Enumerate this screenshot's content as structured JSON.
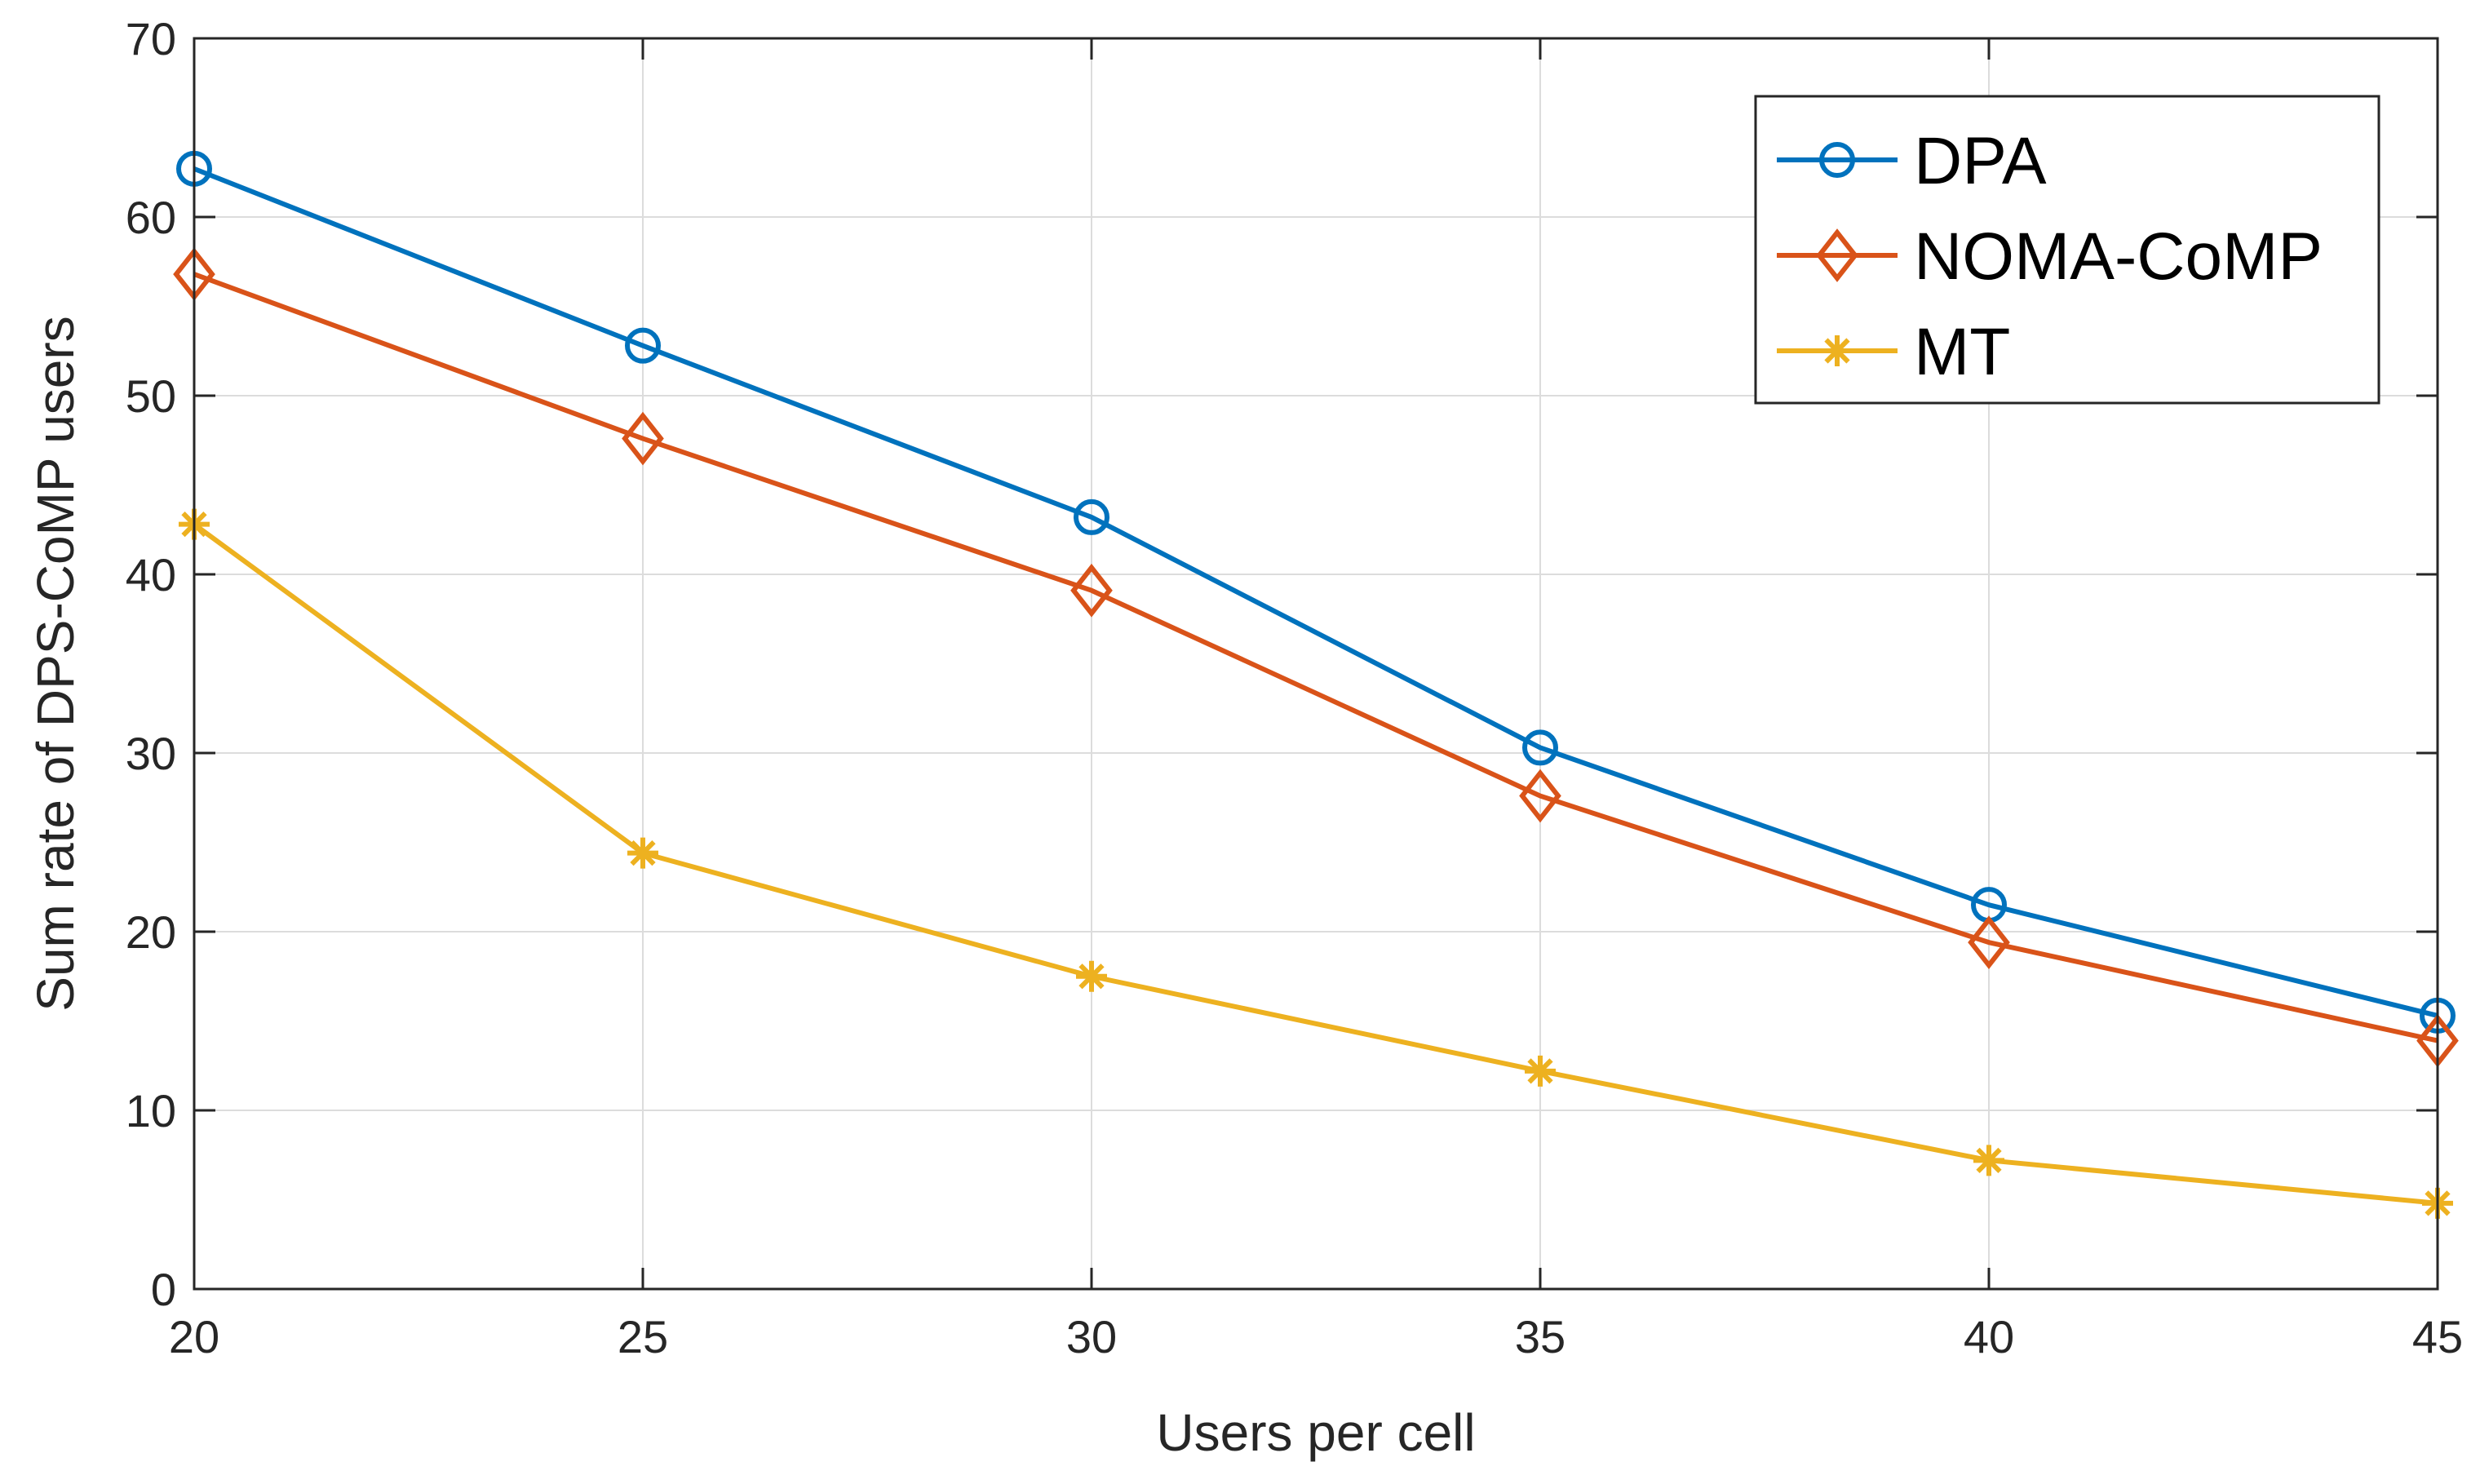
{
  "chart_data": {
    "type": "line",
    "title": "",
    "xlabel": "Users per cell",
    "ylabel": "Sum rate of  DPS-CoMP users",
    "x": [
      20,
      25,
      30,
      35,
      40,
      45
    ],
    "xlim": [
      20,
      45
    ],
    "ylim": [
      0,
      70
    ],
    "xticks": [
      "20",
      "25",
      "30",
      "35",
      "40",
      "45"
    ],
    "yticks": [
      "0",
      "10",
      "20",
      "30",
      "40",
      "50",
      "60",
      "70"
    ],
    "grid": true,
    "legend_position": "top-right",
    "series": [
      {
        "name": "DPA",
        "marker": "circle",
        "color": "#0072BD",
        "values": [
          62.7,
          52.8,
          43.2,
          30.3,
          21.5,
          15.3
        ]
      },
      {
        "name": "NOMA-CoMP",
        "marker": "diamond",
        "color": "#D95319",
        "values": [
          56.8,
          47.6,
          39.1,
          27.6,
          19.4,
          13.9
        ]
      },
      {
        "name": "MT",
        "marker": "asterisk",
        "color": "#EDB120",
        "values": [
          42.8,
          24.4,
          17.5,
          12.2,
          7.2,
          4.8
        ]
      }
    ]
  }
}
